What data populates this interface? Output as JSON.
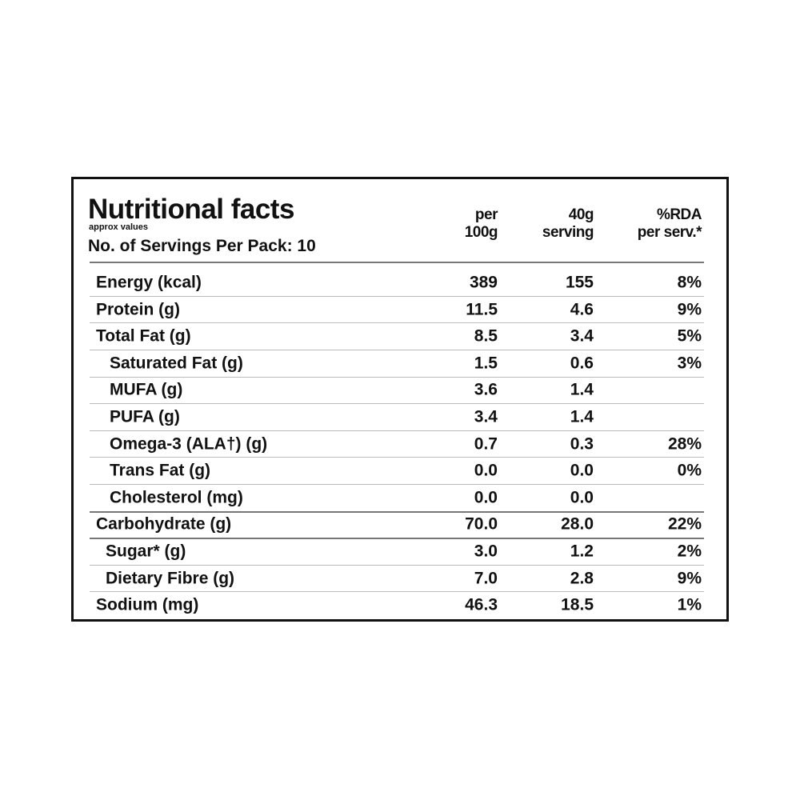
{
  "header": {
    "title": "Nutritional facts",
    "subtitle": "approx values",
    "servings": "No. of Servings Per Pack: 10"
  },
  "columns": [
    [
      "per",
      "100g"
    ],
    [
      "40g",
      "serving"
    ],
    [
      "%RDA",
      "per serv.*"
    ]
  ],
  "table": {
    "rows": [
      [
        "Energy (kcal)",
        "389",
        "155",
        "8%"
      ],
      [
        "Protein (g)",
        "11.5",
        "4.6",
        "9%"
      ],
      [
        "Total Fat (g)",
        "8.5",
        "3.4",
        "5%"
      ],
      [
        "Saturated Fat (g)",
        "1.5",
        "0.6",
        "3%"
      ],
      [
        "MUFA (g)",
        "3.6",
        "1.4"
      ],
      [
        "PUFA (g)",
        "3.4",
        "1.4"
      ],
      [
        "Omega-3 (ALA†) (g)",
        "0.7",
        "0.3",
        "28%"
      ],
      [
        "Trans Fat (g)",
        "0.0",
        "0.0",
        "0%"
      ],
      [
        "Cholesterol (mg)",
        "0.0",
        "0.0"
      ],
      [
        "Carbohydrate (g)",
        "70.0",
        "28.0",
        "22%"
      ],
      [
        "Sugar* (g)",
        "3.0",
        "1.2",
        "2%"
      ],
      [
        "Dietary Fibre (g)",
        "7.0",
        "2.8",
        "9%"
      ],
      [
        "Sodium (mg)",
        "46.3",
        "18.5",
        "1%"
      ]
    ]
  }
}
